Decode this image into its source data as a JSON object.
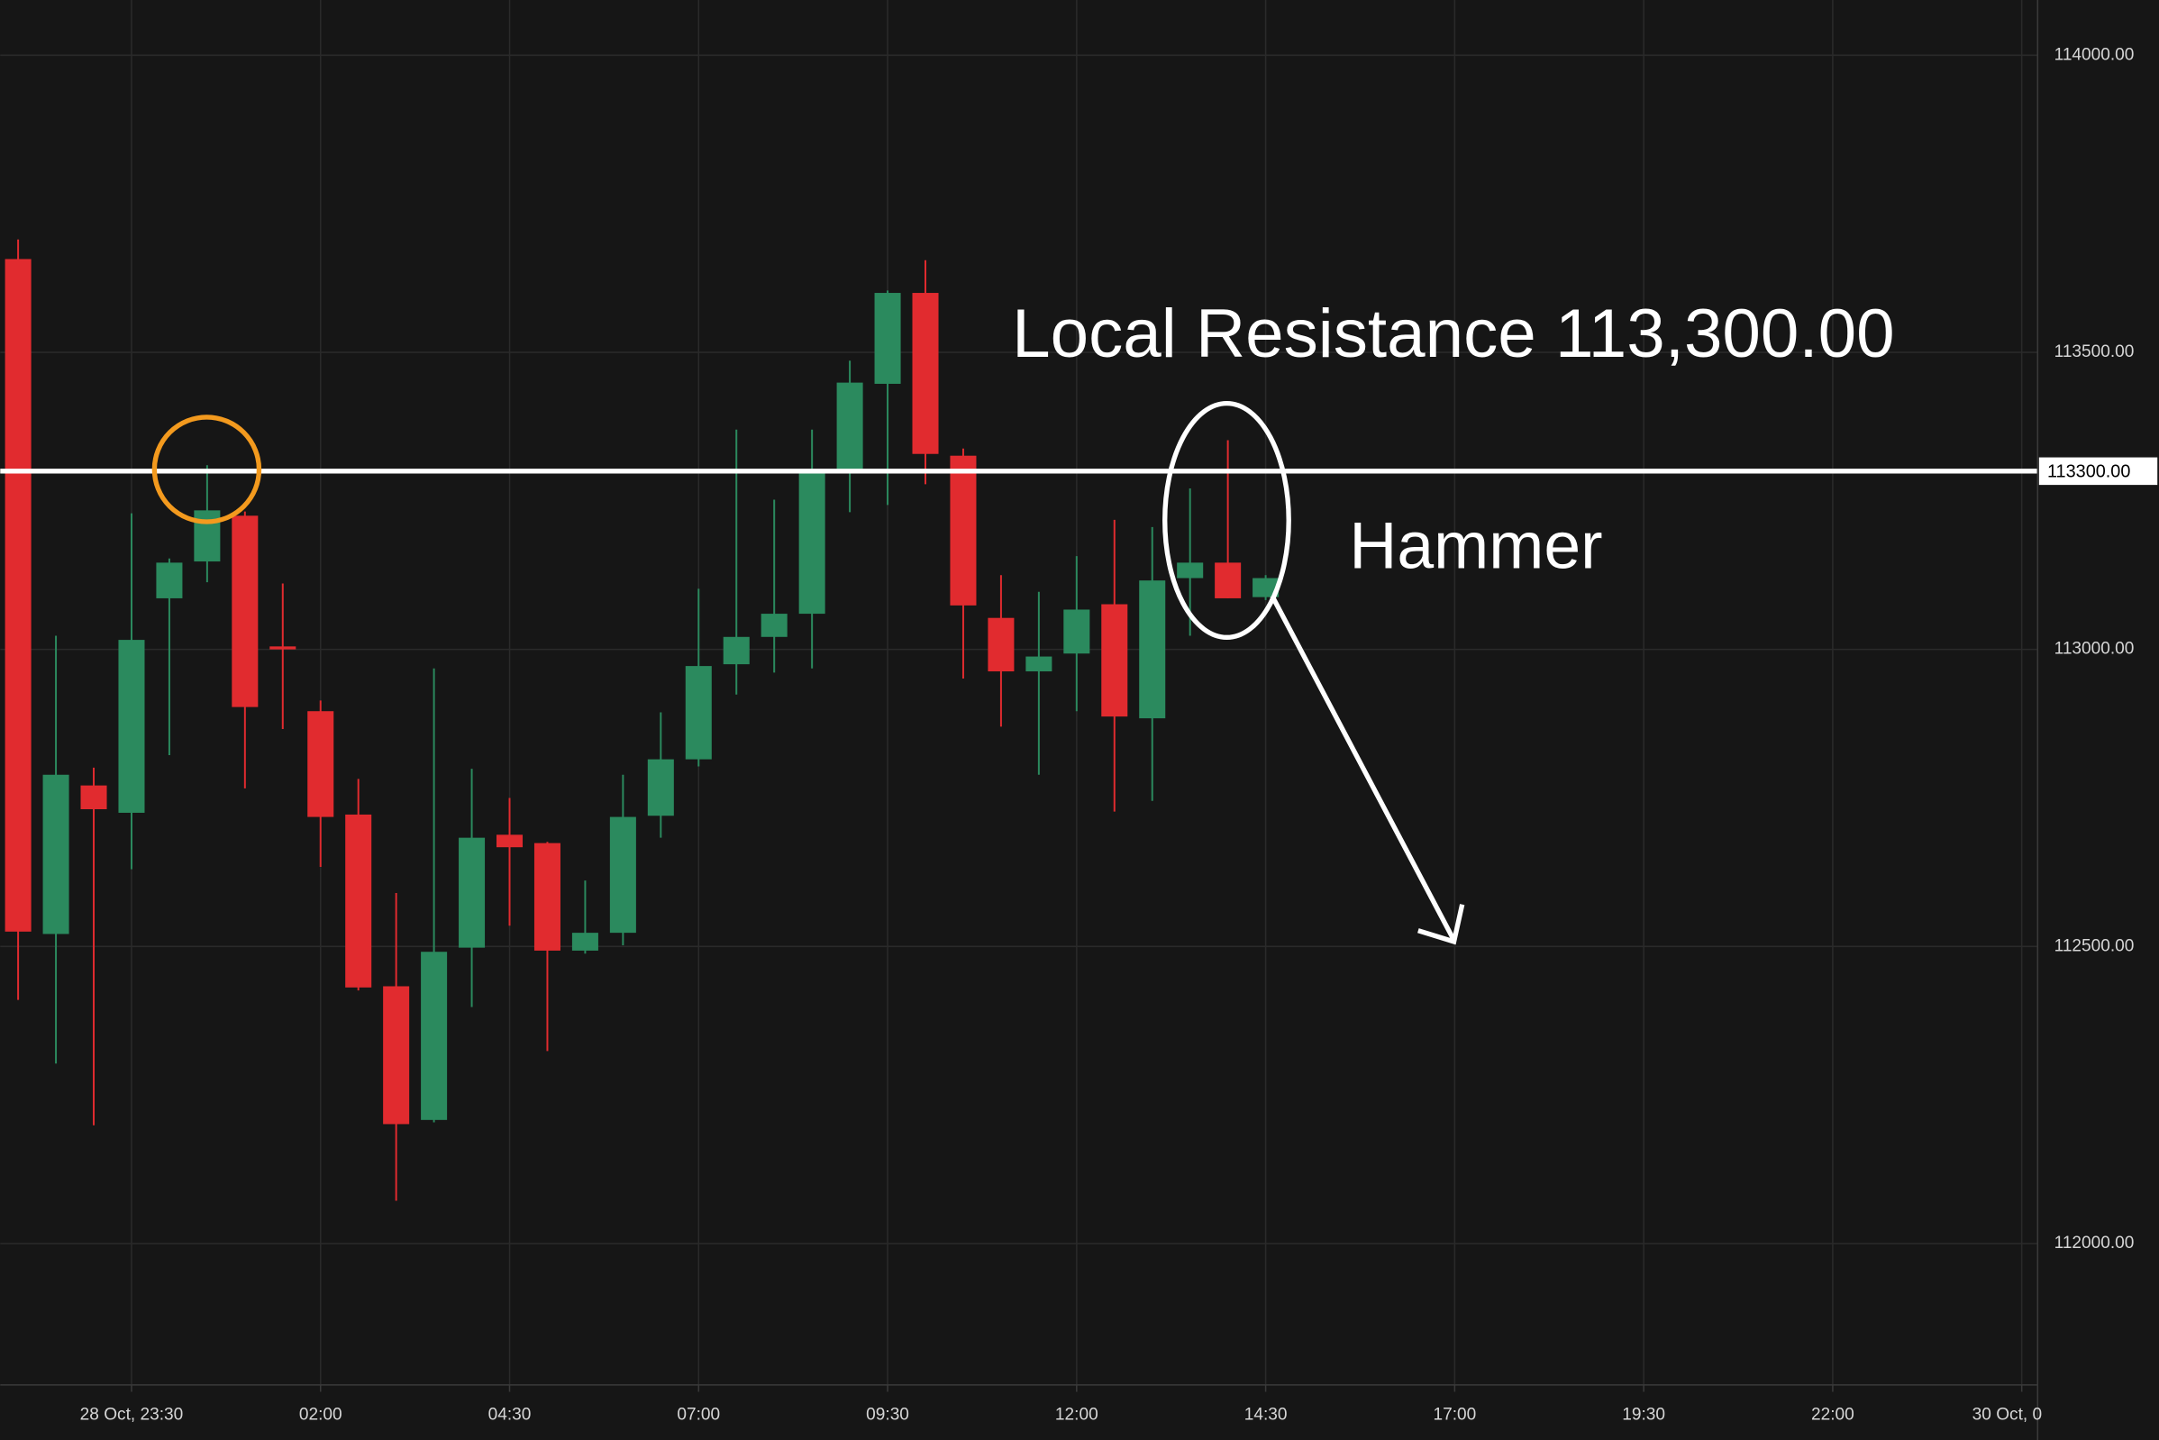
{
  "chart_data": {
    "type": "candlestick",
    "open": [
      113657,
      112521,
      112771,
      112725,
      113086,
      113148,
      113225,
      113005,
      112896,
      112722,
      112433,
      112208,
      112498,
      112688,
      112674,
      112493,
      112523,
      112720,
      112815,
      112975,
      113021,
      113060,
      113296,
      113447,
      113600,
      113326,
      113053,
      112963,
      112993,
      113076,
      112884,
      113120,
      113146,
      113088
    ],
    "high": [
      113690,
      113023,
      112801,
      113229,
      113153,
      113310,
      113232,
      113111,
      112914,
      112782,
      112590,
      112968,
      112799,
      112750,
      112676,
      112611,
      112789,
      112894,
      113102,
      113370,
      113252,
      113370,
      113486,
      113604,
      113655,
      113338,
      113125,
      113097,
      113157,
      113218,
      113206,
      113271,
      113352,
      113125
    ],
    "low": [
      112410,
      112303,
      112199,
      112630,
      112822,
      113113,
      112766,
      112866,
      112634,
      112426,
      112072,
      112204,
      112398,
      112535,
      112324,
      112488,
      112502,
      112683,
      112803,
      112924,
      112961,
      112968,
      113231,
      113243,
      113278,
      112951,
      112870,
      112789,
      112896,
      112727,
      112745,
      113023,
      113086,
      113083
    ],
    "close": [
      112525,
      112789,
      112731,
      113016,
      113146,
      113234,
      112903,
      113000,
      112718,
      112431,
      112201,
      112491,
      112683,
      112667,
      112493,
      112523,
      112718,
      112815,
      112972,
      113021,
      113060,
      113296,
      113449,
      113600,
      113329,
      113074,
      112963,
      112988,
      113067,
      112887,
      113116,
      113146,
      113086,
      113120
    ],
    "up_color": "#2b8a5e",
    "down_color": "#e12b2f",
    "ylim": [
      111762,
      114093
    ],
    "yticks": [
      {
        "value": 112000,
        "label": "112000.00"
      },
      {
        "value": 112500,
        "label": "112500.00"
      },
      {
        "value": 113000,
        "label": "113000.00"
      },
      {
        "value": 113500,
        "label": "113500.00"
      },
      {
        "value": 114000,
        "label": "114000.00"
      }
    ],
    "xlim": [
      -0.473,
      53.42
    ],
    "xticks": [
      {
        "value": 3,
        "label": "28 Oct, 23:30"
      },
      {
        "value": 8,
        "label": "02:00"
      },
      {
        "value": 13,
        "label": "04:30"
      },
      {
        "value": 18,
        "label": "07:00"
      },
      {
        "value": 23,
        "label": "09:30"
      },
      {
        "value": 28,
        "label": "12:00"
      },
      {
        "value": 33,
        "label": "14:30"
      },
      {
        "value": 38,
        "label": "17:00"
      },
      {
        "value": 43,
        "label": "19:30"
      },
      {
        "value": 48,
        "label": "22:00"
      },
      {
        "value": 53,
        "label": "30 Oct, 0"
      }
    ],
    "grid": true,
    "resistance": {
      "value": 113300,
      "label": "113300.00"
    },
    "resistance_text": "Local Resistance 113,300.00",
    "pattern_text": "Hammer"
  }
}
